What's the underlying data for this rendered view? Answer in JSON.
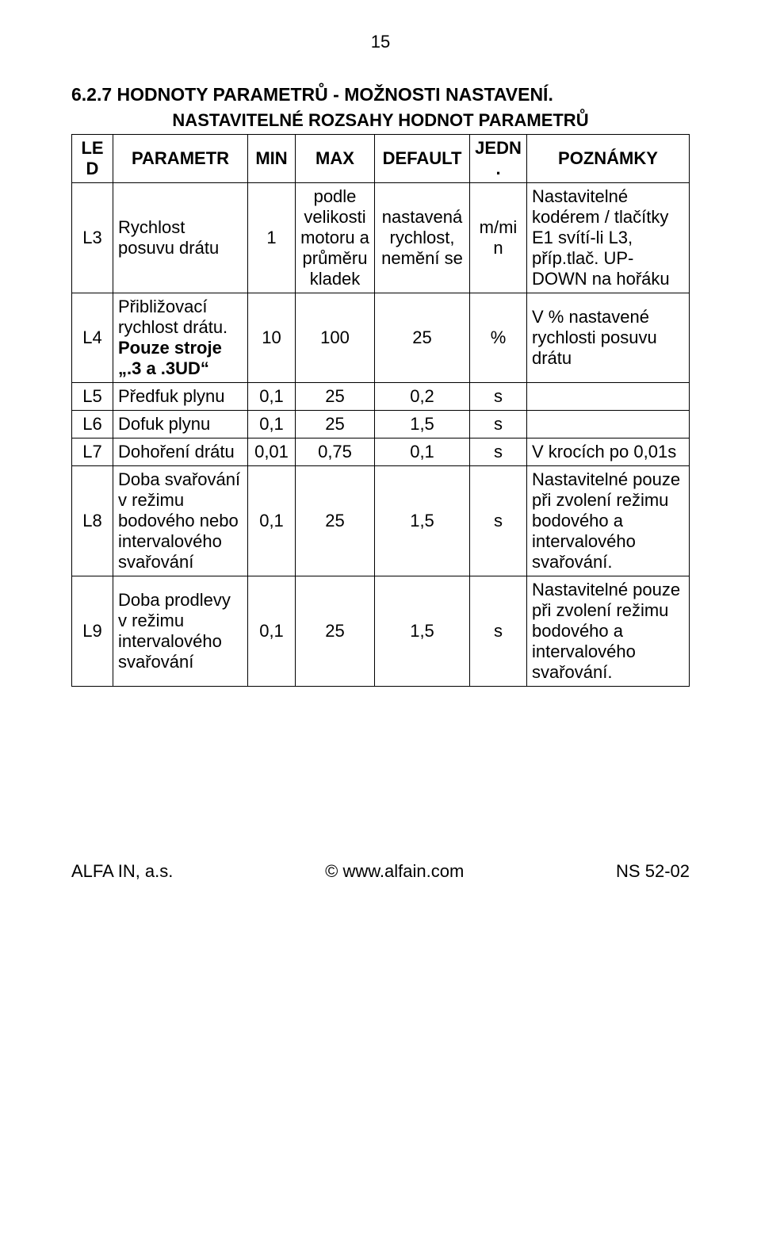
{
  "page_number": "15",
  "section_title": "6.2.7 HODNOTY PARAMETRŮ - MOŽNOSTI NASTAVENÍ.",
  "table_title": "NASTAVITELNÉ ROZSAHY HODNOT PARAMETRŮ",
  "headers": {
    "c0": "LED",
    "c1": "PARAMETR",
    "c2": "MIN",
    "c3": "MAX",
    "c4": "DEFAULT",
    "c5": "JEDN.",
    "c6": "POZNÁMKY"
  },
  "rows": [
    {
      "led": "L3",
      "param": "Rychlost posuvu drátu",
      "min": "1",
      "max": "podle velikosti motoru a průměru kladek",
      "def": "nastavená rychlost, nemění se",
      "unit": "m/min",
      "note": "Nastavitelné kodérem / tlačítky E1 svítí-li L3, příp.tlač. UP-DOWN na hořáku"
    },
    {
      "led": "L4",
      "param_html": "Přibližovací rychlost drátu. <b>Pouze stroje „.3 a .3UD“</b>",
      "min": "10",
      "max": "100",
      "def": "25",
      "unit": "%",
      "note": "V % nastavené rychlosti posuvu drátu"
    },
    {
      "led": "L5",
      "param": "Předfuk plynu",
      "min": "0,1",
      "max": "25",
      "def": "0,2",
      "unit": "s",
      "note": ""
    },
    {
      "led": "L6",
      "param": "Dofuk plynu",
      "min": "0,1",
      "max": "25",
      "def": "1,5",
      "unit": "s",
      "note": ""
    },
    {
      "led": "L7",
      "param": "Dohoření drátu",
      "min": "0,01",
      "max": "0,75",
      "def": "0,1",
      "unit": "s",
      "note": "V krocích po 0,01s"
    },
    {
      "led": "L8",
      "param": "Doba svařování  v režimu bodového nebo intervalového svařování",
      "min": "0,1",
      "max": "25",
      "def": "1,5",
      "unit": "s",
      "note": "Nastavitelné pouze při zvolení režimu bodového a intervalového svařování."
    },
    {
      "led": "L9",
      "param": "Doba prodlevy v režimu intervalového svařování",
      "min": "0,1",
      "max": "25",
      "def": "1,5",
      "unit": "s",
      "note": "Nastavitelné pouze při zvolení režimu bodového a intervalového svařování."
    }
  ],
  "footer": {
    "left": "ALFA IN, a.s.",
    "center": "©      www.alfain.com",
    "right": "NS 52-02"
  }
}
